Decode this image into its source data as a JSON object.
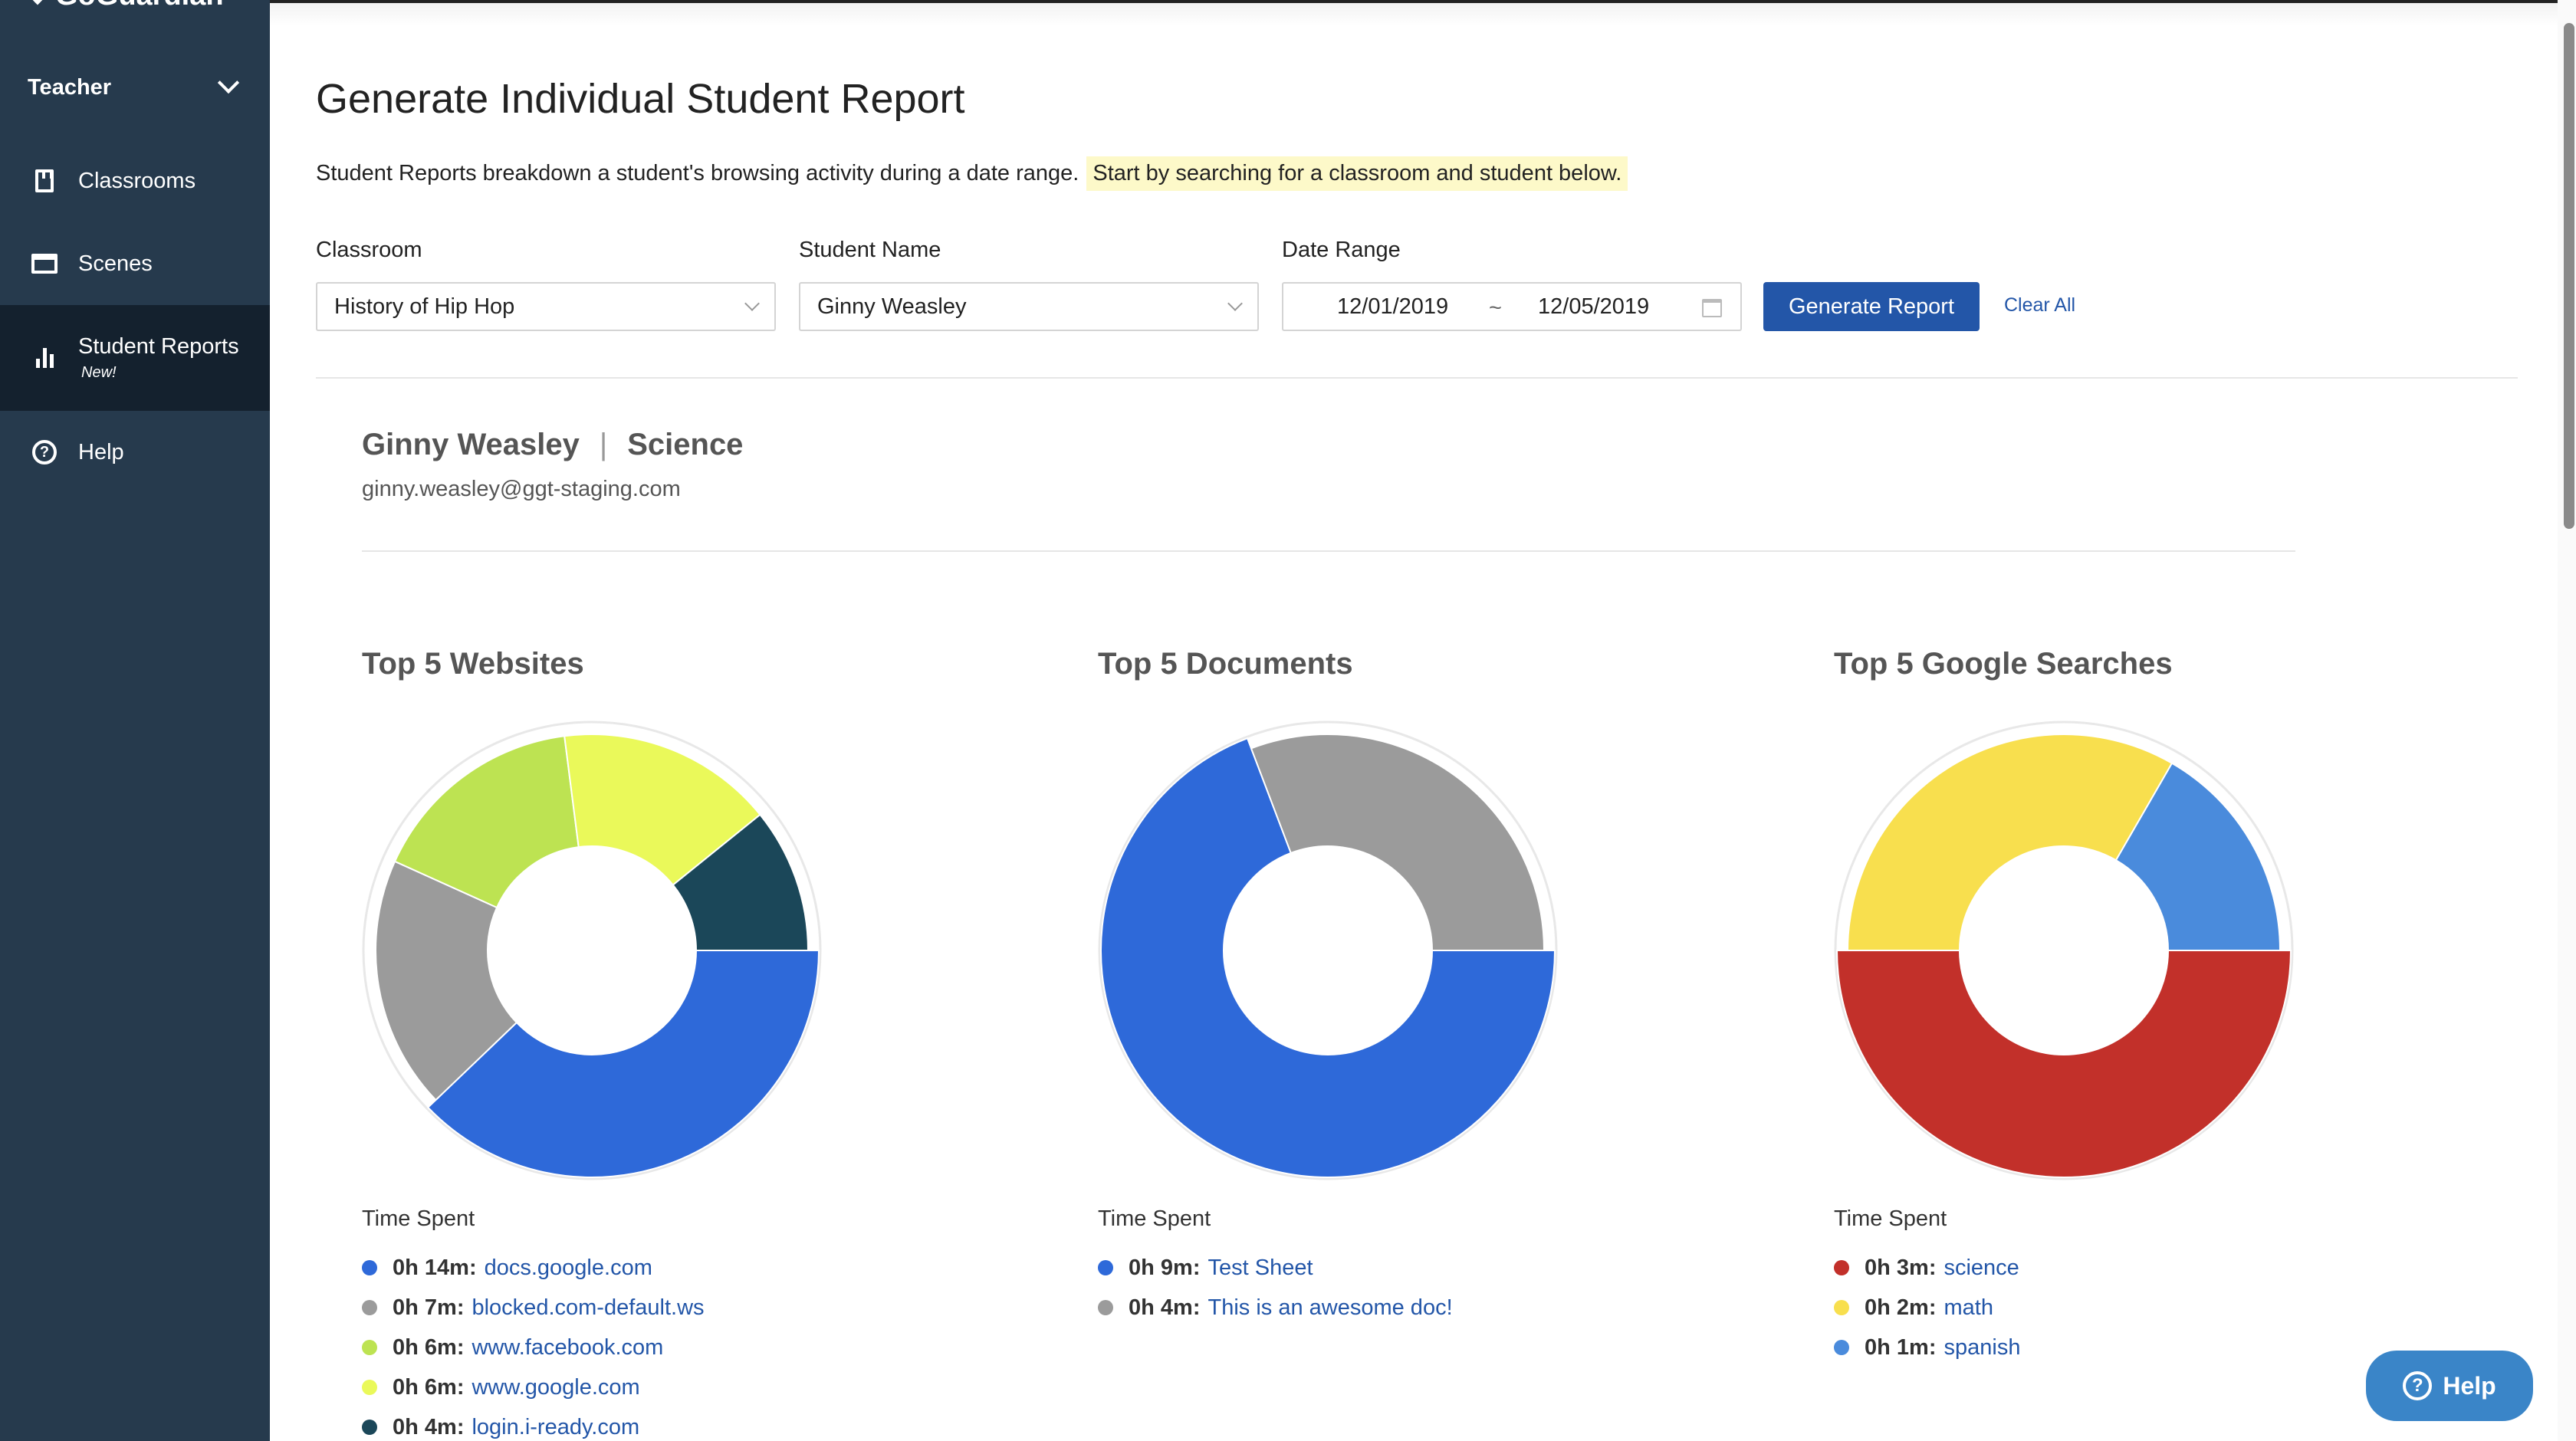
{
  "sidebar": {
    "logo": "GoGuardian",
    "role": "Teacher",
    "items": [
      {
        "label": "Classrooms",
        "icon": "classroom-icon"
      },
      {
        "label": "Scenes",
        "icon": "scene-icon"
      },
      {
        "label": "Student Reports",
        "badge": "New!",
        "icon": "bar-chart-icon"
      },
      {
        "label": "Help",
        "icon": "help-icon"
      }
    ]
  },
  "page": {
    "title": "Generate Individual Student Report",
    "intro": "Student Reports breakdown a student's browsing activity during a date range.",
    "intro_highlight": "Start by searching for a classroom and student below."
  },
  "filters": {
    "classroom_label": "Classroom",
    "classroom_value": "History of Hip Hop",
    "student_label": "Student Name",
    "student_value": "Ginny Weasley",
    "date_label": "Date Range",
    "date_start": "12/01/2019",
    "date_separator": "~",
    "date_end": "12/05/2019",
    "generate_label": "Generate Report",
    "clear_label": "Clear All"
  },
  "report": {
    "student_name": "Ginny Weasley",
    "separator": "|",
    "subject": "Science",
    "email": "ginny.weasley@ggt-staging.com",
    "time_spent_label": "Time Spent"
  },
  "chart_data": [
    {
      "type": "pie",
      "title": "Top 5 Websites",
      "series": [
        {
          "name": "docs.google.com",
          "time": "0h 14m",
          "value": 14,
          "color": "#2e69d9"
        },
        {
          "name": "blocked.com-default.ws",
          "time": "0h 7m",
          "value": 7,
          "color": "#9b9b9b"
        },
        {
          "name": "www.facebook.com",
          "time": "0h 6m",
          "value": 6,
          "color": "#bde352"
        },
        {
          "name": "www.google.com",
          "time": "0h 6m",
          "value": 6,
          "color": "#eaf95a"
        },
        {
          "name": "login.i-ready.com",
          "time": "0h 4m",
          "value": 4,
          "color": "#1b4759"
        }
      ]
    },
    {
      "type": "pie",
      "title": "Top 5 Documents",
      "series": [
        {
          "name": "Test Sheet",
          "time": "0h 9m",
          "value": 9,
          "color": "#2e69d9"
        },
        {
          "name": "This is an awesome doc!",
          "time": "0h 4m",
          "value": 4,
          "color": "#9b9b9b"
        }
      ]
    },
    {
      "type": "pie",
      "title": "Top 5 Google Searches",
      "series": [
        {
          "name": "science",
          "time": "0h 3m",
          "value": 3,
          "color": "#c2302a"
        },
        {
          "name": "math",
          "time": "0h 2m",
          "value": 2,
          "color": "#f8df4e"
        },
        {
          "name": "spanish",
          "time": "0h 1m",
          "value": 1,
          "color": "#4a8bdc"
        }
      ]
    }
  ],
  "help_button": "Help"
}
